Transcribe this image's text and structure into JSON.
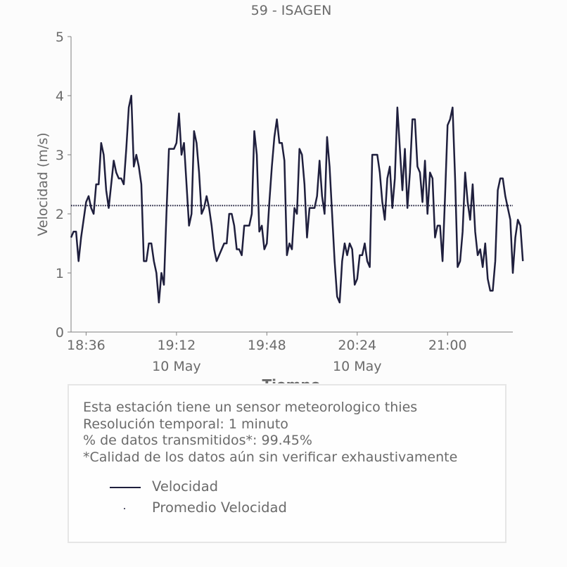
{
  "chart_data": {
    "type": "line",
    "title": "59 - ISAGEN",
    "xlabel": "Tiempo",
    "ylabel": "Velocidad (m/s)",
    "ylim": [
      0,
      5
    ],
    "yticks": [
      "0",
      "1",
      "2",
      "3",
      "4",
      "5"
    ],
    "xlim": [
      "18:30",
      "21:26"
    ],
    "xticks": [
      {
        "time": "18:36",
        "label": "18:36",
        "sublabel": ""
      },
      {
        "time": "19:12",
        "label": "19:12",
        "sublabel": "10 May"
      },
      {
        "time": "19:48",
        "label": "19:48",
        "sublabel": ""
      },
      {
        "time": "20:24",
        "label": "20:24",
        "sublabel": "10 May"
      },
      {
        "time": "21:00",
        "label": "21:00",
        "sublabel": ""
      }
    ],
    "grid": false,
    "series": [
      {
        "name": "Velocidad",
        "color": "#1f1f3d",
        "style": "solid",
        "start": "18:30",
        "interval_minutes": 1,
        "values": [
          1.6,
          1.7,
          1.7,
          1.2,
          1.6,
          1.9,
          2.2,
          2.3,
          2.1,
          2.0,
          2.5,
          2.5,
          3.2,
          3.0,
          2.4,
          2.1,
          2.5,
          2.9,
          2.7,
          2.6,
          2.6,
          2.5,
          3.1,
          3.8,
          4.0,
          2.8,
          3.0,
          2.8,
          2.5,
          1.2,
          1.2,
          1.5,
          1.5,
          1.2,
          1.0,
          0.5,
          1.0,
          0.8,
          2.0,
          3.1,
          3.1,
          3.1,
          3.2,
          3.7,
          3.0,
          3.2,
          2.5,
          1.8,
          2.0,
          3.4,
          3.2,
          2.7,
          2.0,
          2.1,
          2.3,
          2.1,
          1.8,
          1.4,
          1.2,
          1.3,
          1.4,
          1.5,
          1.5,
          2.0,
          2.0,
          1.8,
          1.4,
          1.4,
          1.3,
          1.8,
          1.8,
          1.8,
          2.0,
          3.4,
          3.0,
          1.7,
          1.8,
          1.4,
          1.5,
          2.2,
          2.8,
          3.3,
          3.6,
          3.2,
          3.2,
          2.9,
          1.3,
          1.5,
          1.4,
          2.1,
          2.0,
          3.1,
          3.0,
          2.5,
          1.6,
          2.1,
          2.1,
          2.1,
          2.3,
          2.9,
          2.3,
          2.0,
          3.3,
          2.8,
          2.0,
          1.2,
          0.6,
          0.5,
          1.2,
          1.5,
          1.3,
          1.5,
          1.4,
          0.8,
          0.9,
          1.3,
          1.3,
          1.5,
          1.2,
          1.1,
          3.0,
          3.0,
          3.0,
          2.7,
          2.2,
          1.9,
          2.6,
          2.8,
          2.1,
          2.6,
          3.8,
          3.1,
          2.4,
          3.1,
          2.1,
          2.7,
          3.6,
          3.6,
          2.8,
          2.7,
          2.2,
          2.9,
          2.0,
          2.7,
          2.6,
          1.6,
          1.8,
          1.8,
          1.2,
          2.3,
          3.5,
          3.6,
          3.8,
          2.6,
          1.1,
          1.2,
          1.7,
          2.7,
          2.2,
          1.9,
          2.5,
          1.7,
          1.3,
          1.4,
          1.1,
          1.5,
          0.9,
          0.7,
          0.7,
          1.2,
          2.4,
          2.6,
          2.6,
          2.3,
          2.1,
          1.9,
          1.0,
          1.6,
          1.9,
          1.8,
          1.2
        ]
      },
      {
        "name": "Promedio Velocidad",
        "color": "#1f1f3d",
        "style": "dotted",
        "constant": 2.14
      }
    ]
  },
  "info": {
    "lines": [
      "Esta estación tiene un sensor meteorologico thies",
      "Resolución temporal: 1 minuto",
      "% de datos transmitidos*: 99.45%",
      "*Calidad de los datos aún sin verificar exhaustivamente"
    ]
  }
}
